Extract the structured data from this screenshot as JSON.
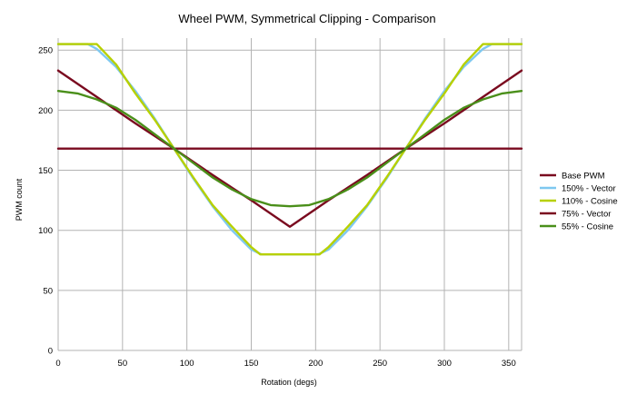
{
  "chart_data": {
    "type": "line",
    "title": "Wheel PWM, Symmetrical Clipping - Comparison",
    "xlabel": "Rotation (degs)",
    "ylabel": "PWM count",
    "xlim": [
      0,
      360
    ],
    "ylim": [
      0,
      260
    ],
    "xticks": [
      0,
      50,
      100,
      150,
      200,
      250,
      300,
      350
    ],
    "yticks": [
      0,
      50,
      100,
      150,
      200,
      250
    ],
    "grid": true,
    "legend_position": "right",
    "series": [
      {
        "name": "Base PWM",
        "color": "#7a0a1f",
        "x": [
          0,
          360
        ],
        "y": [
          168,
          168
        ]
      },
      {
        "name": "150% - Vector",
        "color": "#7ec8f0",
        "x": [
          0,
          23,
          30,
          45,
          60,
          75,
          90,
          105,
          120,
          135,
          150,
          158,
          202,
          210,
          225,
          240,
          255,
          270,
          285,
          300,
          315,
          330,
          337,
          360
        ],
        "y": [
          255,
          255,
          251,
          236,
          216,
          193,
          168,
          143,
          120,
          100,
          84,
          80,
          80,
          84,
          100,
          120,
          143,
          168,
          193,
          216,
          236,
          251,
          255,
          255
        ]
      },
      {
        "name": "110% - Cosine",
        "color": "#b7d000",
        "x": [
          0,
          30,
          45,
          60,
          75,
          90,
          105,
          120,
          135,
          150,
          157,
          203,
          210,
          225,
          240,
          255,
          270,
          285,
          300,
          315,
          330,
          360
        ],
        "y": [
          255,
          255,
          238,
          214,
          192,
          168,
          144,
          121,
          103,
          86,
          80,
          80,
          86,
          103,
          121,
          144,
          168,
          192,
          214,
          238,
          255,
          255
        ]
      },
      {
        "name": "75% - Vector",
        "color": "#7a0a1f",
        "x": [
          0,
          30,
          60,
          90,
          120,
          150,
          180,
          210,
          240,
          270,
          300,
          330,
          360
        ],
        "y": [
          233,
          211,
          189,
          168,
          146,
          125,
          103,
          125,
          146,
          168,
          189,
          211,
          233
        ]
      },
      {
        "name": "55% - Cosine",
        "color": "#4a8f1a",
        "x": [
          0,
          15,
          30,
          45,
          60,
          75,
          90,
          105,
          120,
          135,
          150,
          165,
          180,
          195,
          210,
          225,
          240,
          255,
          270,
          285,
          300,
          315,
          330,
          345,
          360
        ],
        "y": [
          216,
          214,
          209,
          202,
          192,
          180,
          168,
          156,
          144,
          134,
          126,
          121,
          120,
          121,
          126,
          134,
          144,
          156,
          168,
          180,
          192,
          202,
          209,
          214,
          216
        ]
      }
    ]
  }
}
